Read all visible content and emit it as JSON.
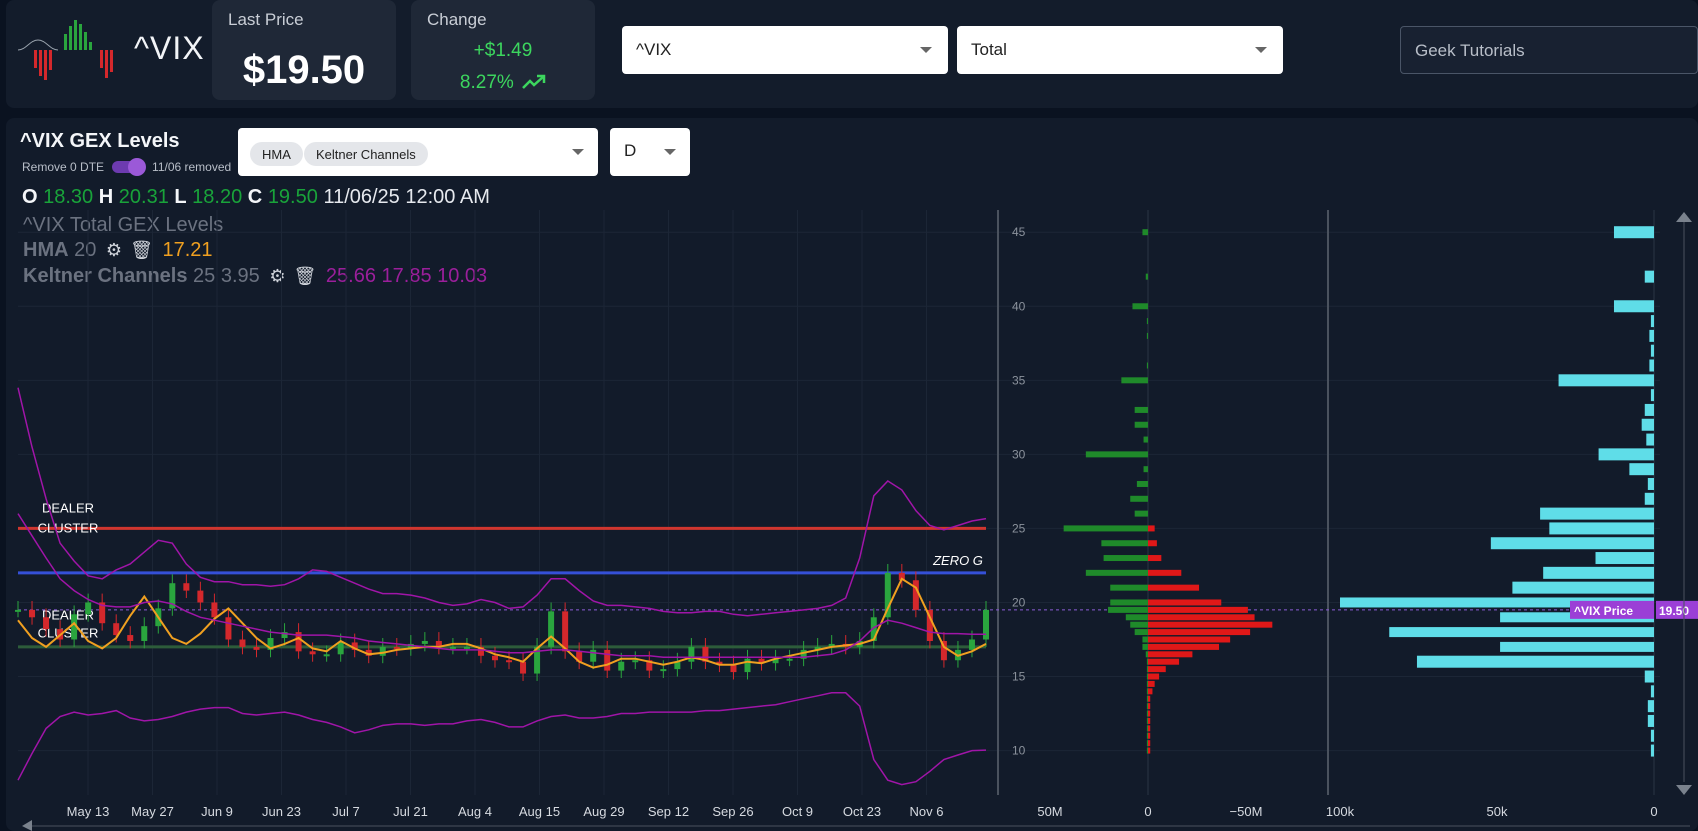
{
  "header": {
    "ticker": "^VIX",
    "last_price_label": "Last Price",
    "last_price": "$19.50",
    "change_label": "Change",
    "change_abs": "+$1.49",
    "change_pct": "8.27%",
    "symbol_select": "^VIX",
    "gex_select": "Total",
    "search_placeholder": "Geek Tutorials"
  },
  "panel": {
    "title": "^VIX GEX Levels",
    "remove_dte_label": "Remove 0 DTE",
    "removed_label": "11/06 removed",
    "indicator_chips": [
      "HMA",
      "Keltner Channels"
    ],
    "timeframe": "D",
    "ohlc": {
      "o": "18.30",
      "h": "20.31",
      "l": "18.20",
      "c": "19.50",
      "datetime": "11/06/25 12:00 AM"
    },
    "legend_title": "^VIX Total GEX Levels",
    "hma_label": "HMA",
    "hma_param": "20",
    "hma_value": "17.21",
    "kc_label": "Keltner Channels",
    "kc_params": "25 3.95",
    "kc_values": "25.66 17.85 10.03"
  },
  "chart_data": [
    {
      "type": "line",
      "name": "price",
      "x_tick_labels": [
        "May 13",
        "May 27",
        "Jun 9",
        "Jun 23",
        "Jul 7",
        "Jul 21",
        "Aug 4",
        "Aug 15",
        "Aug 29",
        "Sep 12",
        "Sep 26",
        "Oct 9",
        "Oct 23",
        "Nov 6"
      ],
      "series": [
        {
          "name": "HMA",
          "color": "#f0a020",
          "values": [
            18.8,
            17.6,
            17.0,
            17.8,
            18.6,
            17.4,
            16.9,
            17.6,
            19.1,
            20.4,
            19.0,
            17.6,
            17.2,
            17.9,
            18.9,
            19.6,
            18.6,
            17.6,
            16.9,
            17.2,
            17.6,
            16.9,
            16.7,
            17.4,
            16.9,
            16.5,
            16.6,
            16.8,
            16.9,
            17.0,
            17.0,
            17.2,
            17.2,
            16.9,
            16.5,
            16.3,
            16.0,
            16.9,
            17.7,
            16.9,
            16.0,
            15.6,
            15.8,
            16.2,
            16.2,
            16.0,
            15.8,
            16.0,
            16.3,
            16.1,
            15.8,
            15.8,
            16.0,
            15.9,
            16.2,
            16.4,
            16.6,
            16.8,
            17.0,
            17.1,
            17.2,
            17.5,
            19.6,
            21.6,
            21.0,
            19.0,
            17.0,
            16.4,
            16.7,
            17.2
          ]
        },
        {
          "name": "Keltner Upper",
          "color": "#a015a8",
          "values": [
            34.5,
            30.5,
            27.0,
            24.0,
            22.8,
            21.8,
            21.6,
            22.2,
            22.6,
            23.4,
            24.2,
            24.0,
            22.6,
            21.7,
            21.4,
            21.4,
            21.2,
            21.2,
            21.1,
            21.2,
            21.6,
            22.2,
            22.1,
            21.7,
            21.3,
            20.9,
            20.6,
            20.6,
            20.5,
            20.3,
            20.0,
            19.8,
            19.9,
            20.2,
            20.0,
            19.6,
            19.7,
            20.5,
            21.6,
            21.6,
            20.8,
            20.1,
            19.8,
            19.8,
            19.7,
            19.6,
            19.4,
            19.3,
            19.3,
            19.4,
            19.4,
            19.2,
            19.1,
            19.2,
            19.3,
            19.4,
            19.5,
            19.6,
            19.8,
            20.3,
            23.0,
            27.2,
            28.2,
            27.6,
            26.2,
            25.2,
            24.9,
            25.2,
            25.5,
            25.66
          ]
        },
        {
          "name": "Keltner Middle",
          "color": "#a015a8",
          "values": [
            26.0,
            24.5,
            23.0,
            21.6,
            20.8,
            20.2,
            19.8,
            19.7,
            19.7,
            20.0,
            20.1,
            19.9,
            19.4,
            19.0,
            18.8,
            18.6,
            18.4,
            18.2,
            18.0,
            17.9,
            17.8,
            17.8,
            17.8,
            17.7,
            17.6,
            17.4,
            17.3,
            17.2,
            17.1,
            17.0,
            16.9,
            16.8,
            16.8,
            16.8,
            16.7,
            16.6,
            16.6,
            16.7,
            16.8,
            16.8,
            16.7,
            16.6,
            16.5,
            16.4,
            16.4,
            16.4,
            16.3,
            16.3,
            16.3,
            16.3,
            16.3,
            16.3,
            16.3,
            16.3,
            16.3,
            16.3,
            16.3,
            16.4,
            16.5,
            16.8,
            17.4,
            18.3,
            18.8,
            18.6,
            18.3,
            18.0,
            17.9,
            17.9,
            17.85,
            17.85
          ]
        },
        {
          "name": "Keltner Lower",
          "color": "#a015a8",
          "values": [
            8.0,
            9.8,
            11.5,
            12.3,
            12.6,
            12.4,
            12.5,
            12.7,
            12.2,
            12.0,
            12.1,
            12.3,
            12.6,
            12.8,
            12.9,
            12.9,
            12.5,
            12.4,
            12.5,
            12.6,
            12.4,
            12.1,
            11.9,
            11.6,
            11.2,
            11.4,
            11.7,
            11.8,
            11.8,
            11.7,
            11.8,
            11.8,
            12.0,
            12.1,
            11.9,
            11.6,
            11.6,
            12.0,
            12.3,
            12.4,
            12.2,
            12.2,
            12.3,
            12.5,
            12.5,
            12.6,
            12.6,
            12.6,
            12.6,
            12.7,
            12.7,
            12.8,
            12.9,
            13.0,
            13.1,
            13.3,
            13.5,
            13.7,
            13.9,
            13.9,
            13.0,
            9.4,
            8.0,
            7.7,
            7.9,
            8.6,
            9.4,
            9.7,
            10.0,
            10.03
          ]
        },
        {
          "name": "Close",
          "color": "#19a33a",
          "values": [
            19.5,
            19.0,
            18.2,
            17.5,
            19.2,
            20.0,
            18.6,
            17.8,
            17.4,
            18.4,
            19.6,
            21.3,
            20.8,
            20.0,
            19.0,
            17.5,
            17.0,
            16.8,
            17.6,
            18.0,
            16.7,
            16.5,
            16.5,
            17.3,
            16.8,
            16.4,
            17.0,
            16.9,
            17.2,
            17.4,
            17.0,
            17.0,
            17.0,
            16.4,
            16.1,
            16.0,
            15.2,
            17.0,
            19.4,
            16.7,
            16.0,
            16.8,
            15.4,
            16.0,
            16.1,
            15.4,
            15.5,
            16.0,
            17.0,
            16.0,
            15.8,
            15.3,
            16.2,
            15.9,
            16.2,
            16.2,
            16.8,
            17.0,
            17.2,
            17.0,
            17.4,
            19.0,
            22.0,
            21.5,
            19.5,
            17.4,
            16.1,
            16.8,
            17.5,
            19.5
          ]
        }
      ],
      "horizontal_lines": [
        {
          "label": "DEALER CLUSTER",
          "value": 25.0,
          "color": "#d0362f"
        },
        {
          "label": "ZERO G",
          "value": 22.0,
          "color": "#3550d8"
        },
        {
          "label": "DEALER CLUSTER",
          "value": 17.0,
          "color": "#2d5c3a"
        }
      ],
      "price_line": 19.5
    },
    {
      "type": "bar",
      "name": "net GEX by strike",
      "y_ticks": [
        10,
        15,
        20,
        25,
        30,
        35,
        40,
        45
      ],
      "x_tick_labels": [
        "50M",
        "0",
        "−50M"
      ],
      "strikes": [
        45,
        44,
        43,
        42,
        41,
        40,
        39,
        38,
        37,
        36,
        35,
        34,
        33,
        32,
        31,
        30,
        29,
        28,
        27,
        26,
        25,
        24,
        23,
        22,
        21,
        20,
        19.5,
        19,
        18.5,
        18,
        17.5,
        17,
        16.5,
        16,
        15.5,
        15,
        14.5,
        14,
        13.5,
        13,
        12.5,
        12,
        11.5,
        11,
        10.5,
        10
      ],
      "values": [
        2.5,
        0,
        0,
        1,
        0,
        7,
        0.5,
        0.5,
        0,
        0.5,
        12,
        0,
        6,
        6,
        2,
        28,
        2,
        5,
        8,
        6,
        38,
        21,
        20,
        28,
        17,
        17,
        18,
        10,
        8,
        6,
        2.5,
        2.5,
        1,
        0.5,
        0.5,
        0.5,
        0.5,
        0.5,
        0.5,
        0.5,
        0.5,
        0.5,
        0.5,
        0.5,
        0.5,
        0.5
      ],
      "negative_values": [
        0,
        0,
        0,
        0,
        0,
        0,
        0,
        0,
        0,
        0,
        0,
        0,
        0,
        0,
        0,
        0,
        0,
        0,
        0,
        0,
        -3,
        -4,
        -6,
        -15,
        -23,
        -33,
        -45,
        -48,
        -56,
        -46,
        -37,
        -32,
        -20,
        -14,
        -8,
        -5,
        -3,
        -2,
        -1,
        -1,
        -1,
        -1,
        -1,
        -1,
        -1,
        -1
      ]
    },
    {
      "type": "bar",
      "name": "open interest by strike",
      "x_tick_labels": [
        "100k",
        "50k",
        "0"
      ],
      "strikes": [
        45,
        44,
        43,
        42,
        41,
        40,
        39,
        38,
        37,
        36,
        35,
        34,
        33,
        32,
        31,
        30,
        29,
        28,
        27,
        26,
        25,
        24,
        23,
        22,
        21,
        20,
        19,
        18,
        17,
        16,
        15,
        14,
        13,
        12,
        11,
        10
      ],
      "values": [
        13,
        0,
        0,
        3,
        0,
        13,
        1,
        1.5,
        1,
        1.5,
        31,
        1,
        3,
        4,
        2.5,
        18,
        8,
        2,
        3,
        37,
        34,
        53,
        19,
        36,
        46,
        102,
        50,
        86,
        50,
        77,
        3,
        1,
        2,
        2,
        1,
        1
      ]
    }
  ],
  "axis_labels": {
    "price_tag": "^VIX Price",
    "price_tag_value": "19.50"
  }
}
